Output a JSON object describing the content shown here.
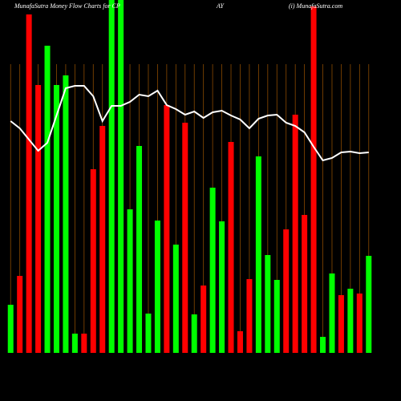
{
  "chart_data": {
    "type": "bar",
    "title": "MunafaSutra  Money Flow  Charts for CP",
    "title_part2": "AY",
    "credit": "(i) MunafaSutra.com",
    "ylim": [
      0,
      440
    ],
    "values": [
      60,
      96,
      422,
      334,
      383,
      334,
      346,
      24,
      24,
      229,
      283,
      440,
      440,
      179,
      258,
      49,
      165,
      309,
      135,
      287,
      48,
      84,
      206,
      164,
      263,
      27,
      92,
      245,
      122,
      91,
      154,
      297,
      172,
      432,
      20,
      99,
      72,
      80,
      74,
      121
    ],
    "colors": [
      "#00ff00",
      "#ff0000",
      "#ff0000",
      "#ff0000",
      "#00ff00",
      "#00ff00",
      "#00ff00",
      "#00ff00",
      "#ff0000",
      "#ff0000",
      "#ff0000",
      "#00ff00",
      "#00ff00",
      "#00ff00",
      "#00ff00",
      "#00ff00",
      "#00ff00",
      "#ff0000",
      "#00ff00",
      "#ff0000",
      "#00ff00",
      "#ff0000",
      "#00ff00",
      "#00ff00",
      "#ff0000",
      "#ff0000",
      "#ff0000",
      "#00ff00",
      "#00ff00",
      "#00ff00",
      "#ff0000",
      "#ff0000",
      "#ff0000",
      "#ff0000",
      "#00ff00",
      "#00ff00",
      "#ff0000",
      "#00ff00",
      "#ff0000",
      "#00ff00"
    ],
    "line": {
      "color": "#ffffff",
      "values": [
        289,
        280,
        266,
        252,
        262,
        296,
        330,
        333,
        333,
        320,
        289,
        308,
        308,
        313,
        322,
        320,
        327,
        309,
        304,
        297,
        301,
        293,
        300,
        302,
        296,
        291,
        280,
        292,
        296,
        297,
        287,
        283,
        275,
        257,
        240,
        243,
        250,
        251,
        249,
        250
      ]
    }
  }
}
